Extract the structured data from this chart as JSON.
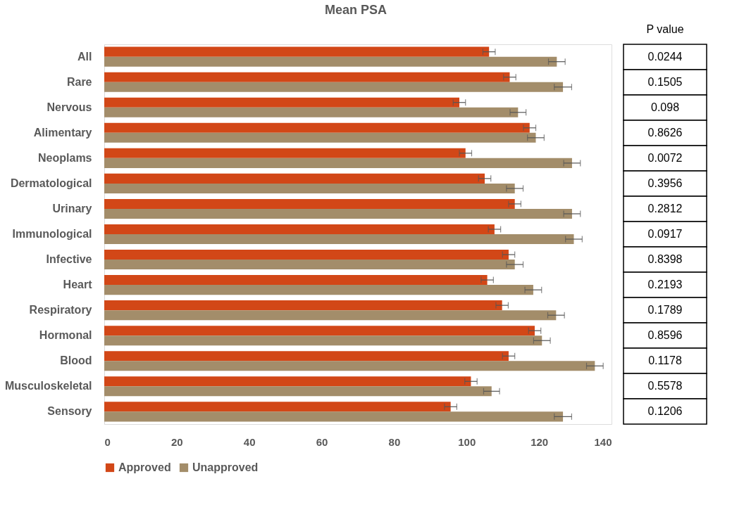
{
  "chart_data": {
    "type": "bar",
    "orientation": "horizontal",
    "title": "Mean PSA",
    "categories": [
      "All",
      "Rare",
      "Nervous",
      "Alimentary",
      "Neoplams",
      "Dermatological",
      "Urinary",
      "Immunological",
      "Infective",
      "Heart",
      "Respiratory",
      "Hormonal",
      "Blood",
      "Musculoskeletal",
      "Sensory"
    ],
    "series": [
      {
        "name": "Approved",
        "color": "#d24717",
        "values": [
          106.2,
          111.9,
          98.0,
          117.4,
          99.7,
          105.0,
          113.3,
          107.7,
          111.6,
          105.7,
          109.8,
          118.8,
          111.6,
          101.2,
          95.6
        ],
        "errors": [
          1.7,
          1.7,
          1.7,
          1.7,
          1.7,
          1.7,
          1.7,
          1.7,
          1.7,
          1.7,
          1.7,
          1.7,
          1.7,
          1.7,
          1.7
        ]
      },
      {
        "name": "Unapproved",
        "color": "#a38d6a",
        "values": [
          124.9,
          126.6,
          114.2,
          119.1,
          129.1,
          113.3,
          129.1,
          129.6,
          113.3,
          118.4,
          124.7,
          120.8,
          135.4,
          106.9,
          126.6
        ],
        "errors": [
          2.3,
          2.4,
          2.2,
          2.3,
          2.3,
          2.3,
          2.3,
          2.3,
          2.3,
          2.3,
          2.3,
          2.3,
          2.3,
          2.2,
          2.4
        ]
      }
    ],
    "xlim": [
      0,
      140
    ],
    "xticks": [
      0,
      20,
      40,
      60,
      80,
      100,
      120,
      140
    ],
    "grid": false,
    "legend": "bottom",
    "annotations": [
      "P value",
      "0.0244",
      "0.1505",
      "0.098",
      "0.8626",
      "0.0072",
      "0.3956",
      "0.2812",
      "0.0917",
      "0.8398",
      "0.2193",
      "0.1789",
      "0.8596",
      "0.1178",
      "0.5578",
      "0.1206"
    ]
  }
}
